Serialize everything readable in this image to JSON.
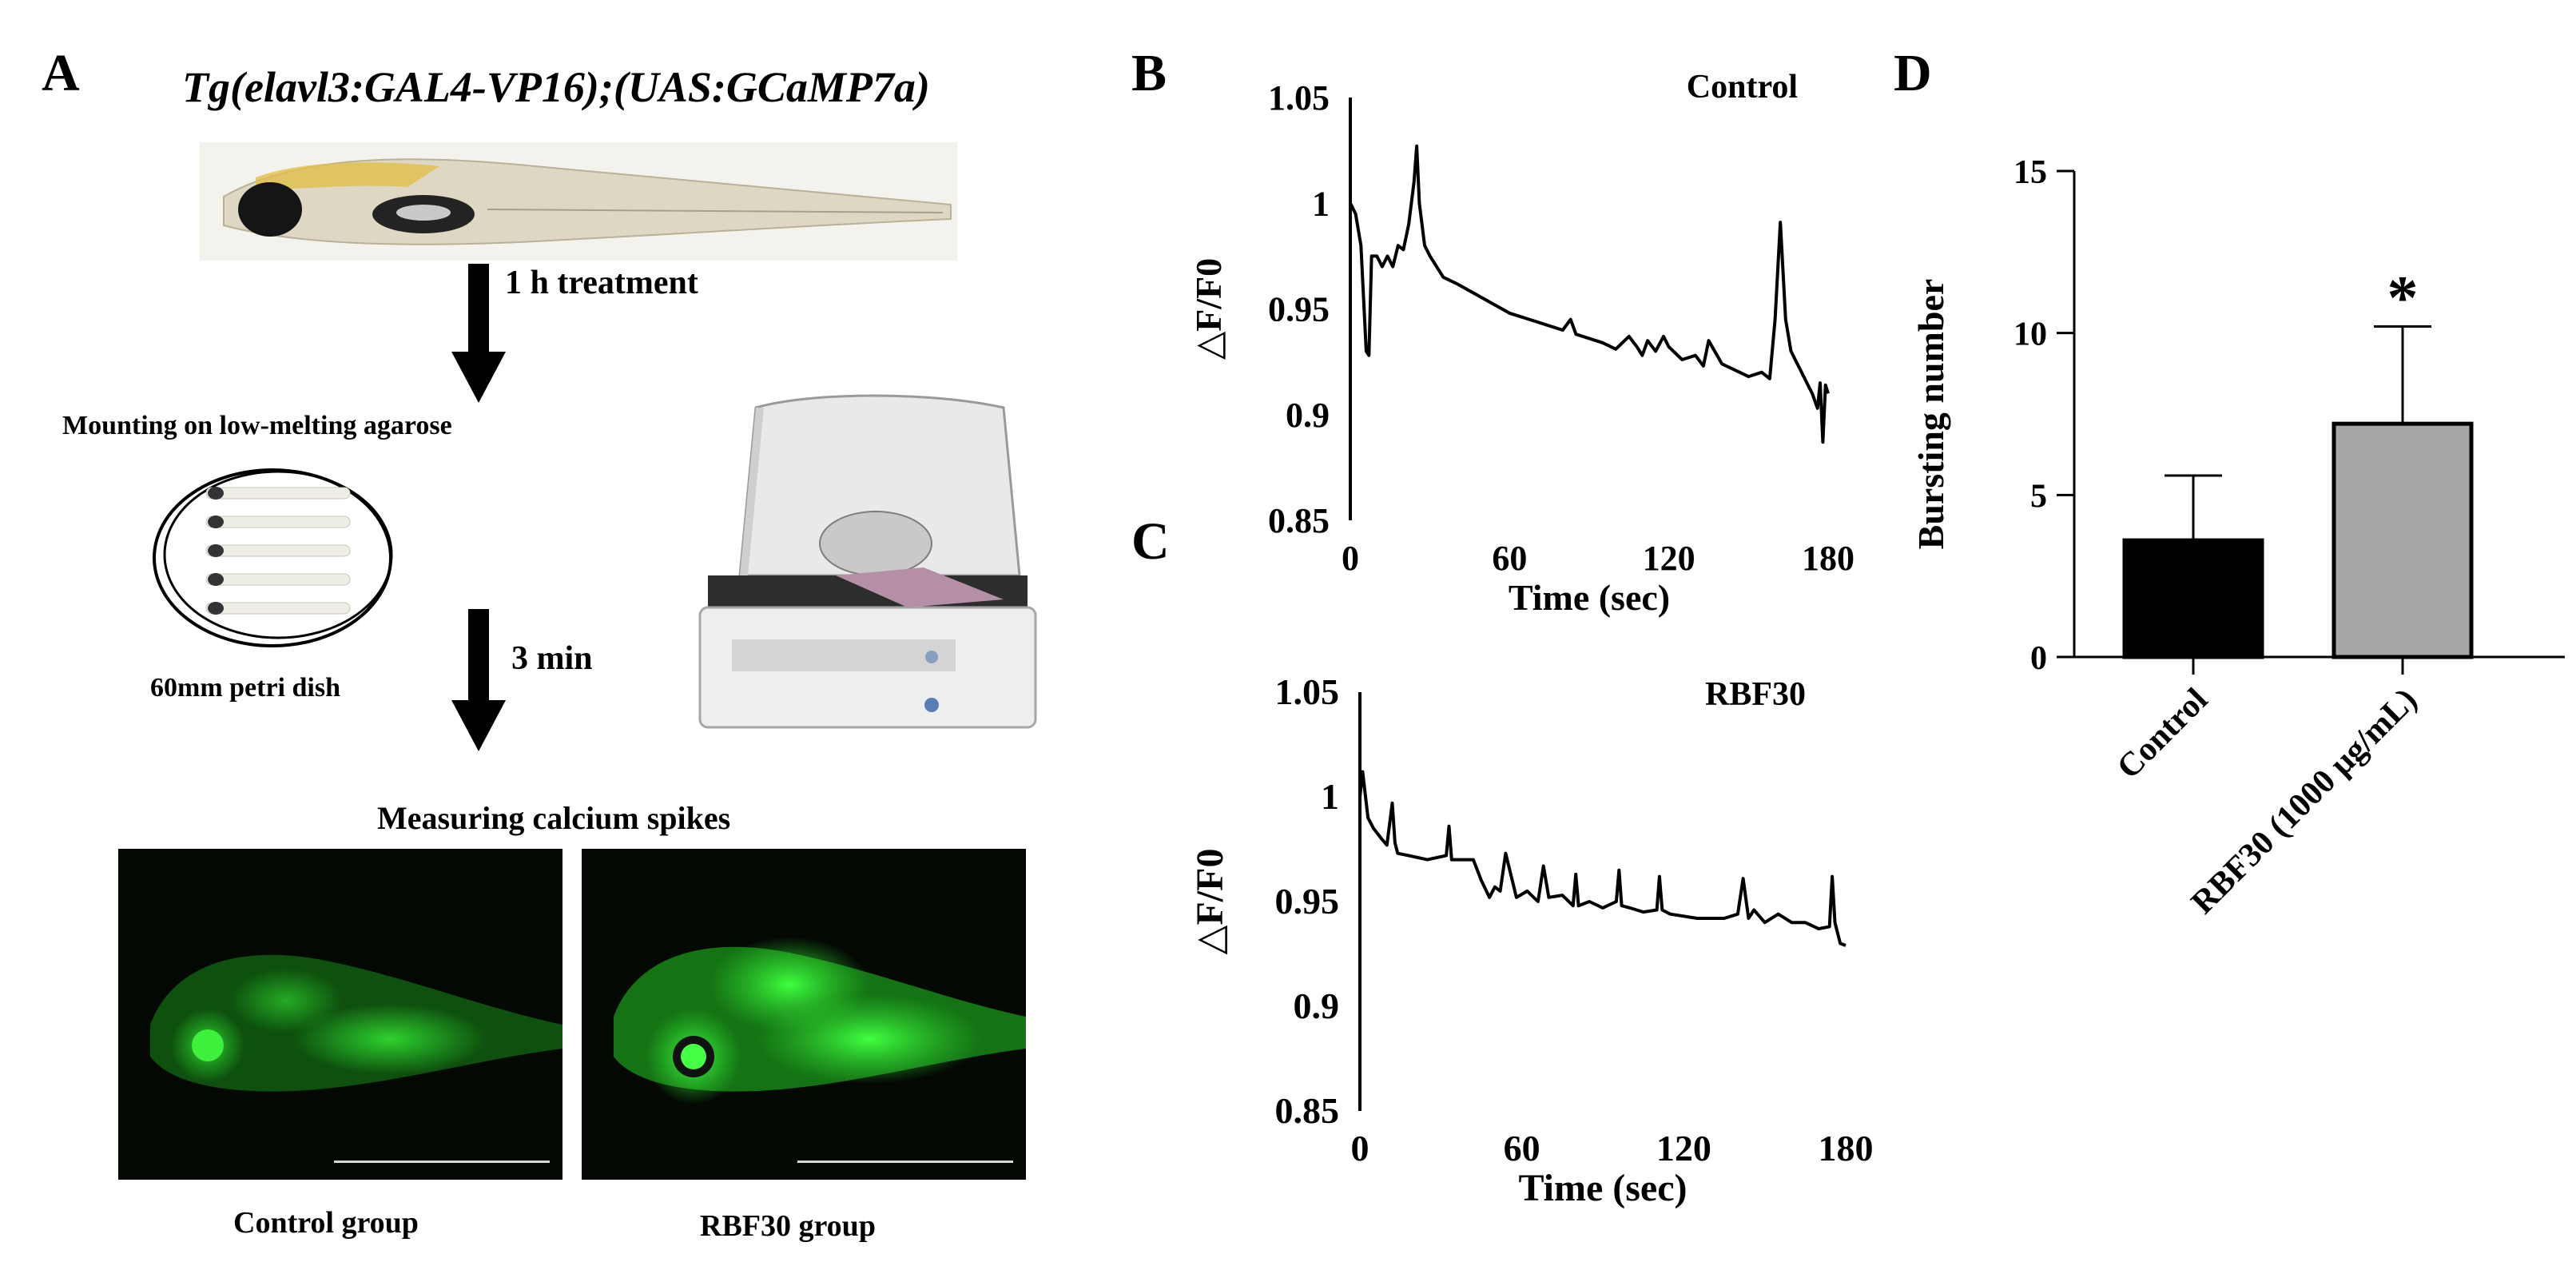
{
  "panels": {
    "a": "A",
    "b": "B",
    "c": "C",
    "d": "D"
  },
  "panel_a": {
    "title": "Tg(elavl3:GAL4-VP16);(UAS:GCaMP7a)",
    "step1": "1 h treatment",
    "mounting": "Mounting on low-melting agarose",
    "dish": "60mm petri dish",
    "step2": "3 min",
    "measuring": "Measuring calcium spikes",
    "control_caption": "Control group",
    "rbf_caption": "RBF30 group",
    "fluor_color": "#2fd82f"
  },
  "chart_data": [
    {
      "id": "B",
      "type": "line",
      "title": "Control",
      "xlabel": "Time (sec)",
      "ylabel": "△F/F0",
      "xlim": [
        0,
        180
      ],
      "ylim": [
        0.85,
        1.05
      ],
      "x_ticks": [
        0,
        60,
        120,
        180
      ],
      "y_ticks": [
        0.85,
        0.9,
        0.95,
        1,
        1.05
      ],
      "y_tick_labels": [
        "0.85",
        "0.9",
        "0.95",
        "1",
        "1.05"
      ],
      "series": [
        {
          "x": [
            0,
            2,
            4,
            6,
            7,
            8,
            10,
            12,
            14,
            16,
            18,
            20,
            22,
            24,
            25,
            26,
            28,
            30,
            35,
            40,
            50,
            60,
            70,
            75,
            80,
            83,
            85,
            90,
            95,
            100,
            105,
            108,
            110,
            112,
            115,
            118,
            120,
            125,
            130,
            133,
            135,
            140,
            145,
            150,
            155,
            158,
            160,
            162,
            164,
            166,
            168,
            170,
            172,
            174,
            176,
            177,
            178,
            179,
            180
          ],
          "y": [
            1.0,
            0.995,
            0.98,
            0.93,
            0.928,
            0.975,
            0.975,
            0.97,
            0.975,
            0.97,
            0.98,
            0.978,
            0.99,
            1.01,
            1.027,
            1.0,
            0.98,
            0.975,
            0.965,
            0.962,
            0.955,
            0.948,
            0.944,
            0.942,
            0.94,
            0.945,
            0.938,
            0.936,
            0.934,
            0.931,
            0.937,
            0.932,
            0.928,
            0.935,
            0.93,
            0.937,
            0.932,
            0.926,
            0.928,
            0.923,
            0.935,
            0.924,
            0.921,
            0.918,
            0.92,
            0.917,
            0.945,
            0.991,
            0.945,
            0.93,
            0.925,
            0.92,
            0.915,
            0.91,
            0.903,
            0.915,
            0.887,
            0.914,
            0.91
          ]
        }
      ]
    },
    {
      "id": "C",
      "type": "line",
      "title": "RBF30",
      "xlabel": "Time (sec)",
      "ylabel": "△F/F0",
      "xlim": [
        0,
        180
      ],
      "ylim": [
        0.85,
        1.05
      ],
      "x_ticks": [
        0,
        60,
        120,
        180
      ],
      "y_ticks": [
        0.85,
        0.9,
        0.95,
        1,
        1.05
      ],
      "y_tick_labels": [
        "0.85",
        "0.9",
        "0.95",
        "1",
        "1.05"
      ],
      "series": [
        {
          "x": [
            0,
            1,
            3,
            5,
            8,
            10,
            12,
            13,
            14,
            18,
            25,
            32,
            33,
            34,
            38,
            42,
            45,
            48,
            50,
            52,
            54,
            58,
            62,
            66,
            68,
            70,
            75,
            79,
            80,
            81,
            85,
            90,
            95,
            96,
            97,
            100,
            105,
            110,
            111,
            112,
            115,
            120,
            125,
            135,
            140,
            142,
            144,
            146,
            150,
            155,
            160,
            165,
            170,
            174,
            175,
            176,
            178,
            180
          ],
          "y": [
            1.0,
            1.012,
            0.99,
            0.985,
            0.98,
            0.977,
            0.997,
            0.978,
            0.973,
            0.972,
            0.97,
            0.972,
            0.986,
            0.97,
            0.97,
            0.97,
            0.96,
            0.952,
            0.957,
            0.955,
            0.973,
            0.952,
            0.955,
            0.95,
            0.967,
            0.952,
            0.953,
            0.948,
            0.963,
            0.948,
            0.95,
            0.947,
            0.95,
            0.965,
            0.948,
            0.947,
            0.945,
            0.946,
            0.962,
            0.946,
            0.944,
            0.943,
            0.942,
            0.942,
            0.944,
            0.961,
            0.942,
            0.946,
            0.94,
            0.944,
            0.94,
            0.94,
            0.937,
            0.938,
            0.962,
            0.94,
            0.93,
            0.929
          ]
        }
      ]
    },
    {
      "id": "D",
      "type": "bar",
      "ylabel": "Bursting number",
      "categories": [
        "Control",
        "RBF30 (1000 μg/mL)"
      ],
      "values": [
        3.6,
        7.2
      ],
      "errors": [
        2.0,
        3.0
      ],
      "colors": [
        "#000000",
        "#a6a6a6"
      ],
      "ylim": [
        0,
        15
      ],
      "y_ticks": [
        0,
        5,
        10,
        15
      ],
      "annotation": "*"
    }
  ]
}
